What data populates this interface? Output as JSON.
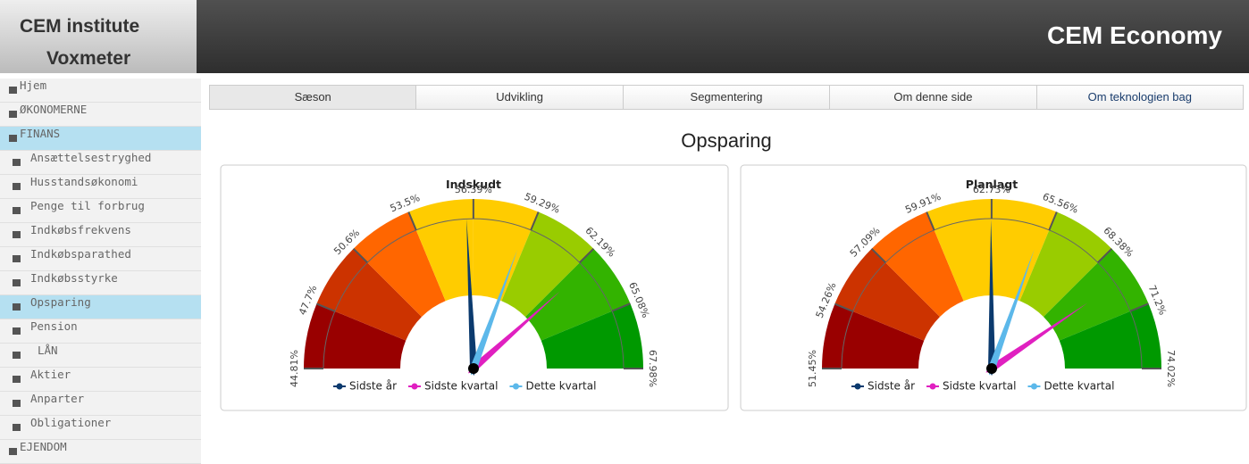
{
  "header": {
    "logo_top": "CEM institute",
    "logo_bottom": "Voxmeter",
    "brand": "CEM Economy"
  },
  "sidebar": {
    "items": [
      "Hjem",
      "ØKONOMERNE",
      "FINANS",
      "Ansættelsestryghed",
      "Husstandsøkonomi",
      "Penge til forbrug",
      "Indkøbsfrekvens",
      "Indkøbsparathed",
      "Indkøbsstyrke",
      "Opsparing",
      "Pension",
      "LÅN",
      "Aktier",
      "Anparter",
      "Obligationer",
      "EJENDOM"
    ]
  },
  "tabs": [
    "Sæson",
    "Udvikling",
    "Segmentering",
    "Om denne side",
    "Om teknologien bag"
  ],
  "page_title": "Opsparing",
  "chart_data": [
    {
      "type": "gauge",
      "title": "Indskudt",
      "ylim": [
        44.81,
        67.98
      ],
      "yticks": [
        {
          "value": 44.81,
          "label": "44.81%"
        },
        {
          "value": 47.7,
          "label": "47.7%"
        },
        {
          "value": 50.6,
          "label": "50.6%"
        },
        {
          "value": 53.5,
          "label": "53.5%"
        },
        {
          "value": 56.39,
          "label": "56.39%"
        },
        {
          "value": 59.29,
          "label": "59.29%"
        },
        {
          "value": 62.19,
          "label": "62.19%"
        },
        {
          "value": 65.08,
          "label": "65.08%"
        },
        {
          "value": 67.98,
          "label": "67.98%"
        }
      ],
      "bands": [
        "#990000",
        "#cc3300",
        "#ff6600",
        "#ffcc00",
        "#ffcc00",
        "#99cc00",
        "#33b300",
        "#009900"
      ],
      "series": [
        {
          "name": "Sidste år",
          "color": "#0b3a6e",
          "values": [
            56.05
          ]
        },
        {
          "name": "Sidste kvartal",
          "color": "#e020c0",
          "values": [
            62.6
          ]
        },
        {
          "name": "Dette kvartal",
          "color": "#5cb8ea",
          "values": [
            59.0
          ]
        }
      ]
    },
    {
      "type": "gauge",
      "title": "Planlagt",
      "ylim": [
        51.45,
        74.02
      ],
      "yticks": [
        {
          "value": 51.45,
          "label": "51.45%"
        },
        {
          "value": 54.26,
          "label": "54.26%"
        },
        {
          "value": 57.09,
          "label": "57.09%"
        },
        {
          "value": 59.91,
          "label": "59.91%"
        },
        {
          "value": 62.73,
          "label": "62.73%"
        },
        {
          "value": 65.56,
          "label": "65.56%"
        },
        {
          "value": 68.38,
          "label": "68.38%"
        },
        {
          "value": 71.2,
          "label": "71.2%"
        },
        {
          "value": 74.02,
          "label": "74.02%"
        }
      ],
      "bands": [
        "#990000",
        "#cc3300",
        "#ff6600",
        "#ffcc00",
        "#ffcc00",
        "#99cc00",
        "#33b300",
        "#009900"
      ],
      "series": [
        {
          "name": "Sidste år",
          "color": "#0b3a6e",
          "values": [
            62.7
          ]
        },
        {
          "name": "Sidste kvartal",
          "color": "#e020c0",
          "values": [
            69.7
          ]
        },
        {
          "name": "Dette kvartal",
          "color": "#5cb8ea",
          "values": [
            65.2
          ]
        }
      ]
    }
  ]
}
